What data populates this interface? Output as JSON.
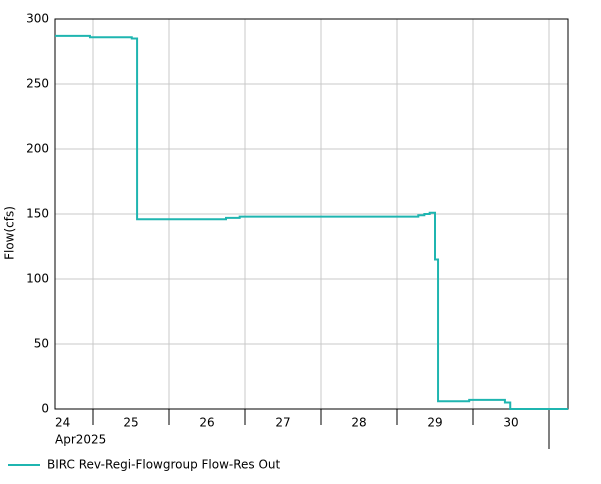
{
  "chart_data": {
    "type": "line",
    "step": "post",
    "ylabel": "Flow(cfs)",
    "xlabel": "Apr2025",
    "x": [
      24.5,
      24.96,
      25.51,
      25.58,
      26.75,
      26.93,
      29.28,
      29.36,
      29.43,
      29.5,
      29.54,
      29.95,
      30.42,
      30.49,
      31.25
    ],
    "series": [
      {
        "name": "BIRC Rev-Regi-Flowgroup Flow-Res Out",
        "color": "#1fb5b0",
        "values": [
          287,
          286,
          285,
          146,
          147,
          148,
          149,
          150,
          151,
          115,
          6,
          7,
          5,
          0,
          0
        ]
      }
    ],
    "xlim": [
      24.5,
      31.25
    ],
    "ylim": [
      0,
      300
    ],
    "xticks": [
      {
        "value": 24.5,
        "label": "24"
      },
      {
        "value": 25.5,
        "label": "25"
      },
      {
        "value": 26.5,
        "label": "26"
      },
      {
        "value": 27.5,
        "label": "27"
      },
      {
        "value": 28.5,
        "label": "28"
      },
      {
        "value": 29.5,
        "label": "29"
      },
      {
        "value": 30.5,
        "label": "30"
      }
    ],
    "xgrid": [
      25,
      26,
      27,
      28,
      29,
      30,
      31
    ],
    "yticks": [
      0,
      50,
      100,
      150,
      200,
      250,
      300
    ],
    "grid": true,
    "legend": "bottom-left"
  }
}
